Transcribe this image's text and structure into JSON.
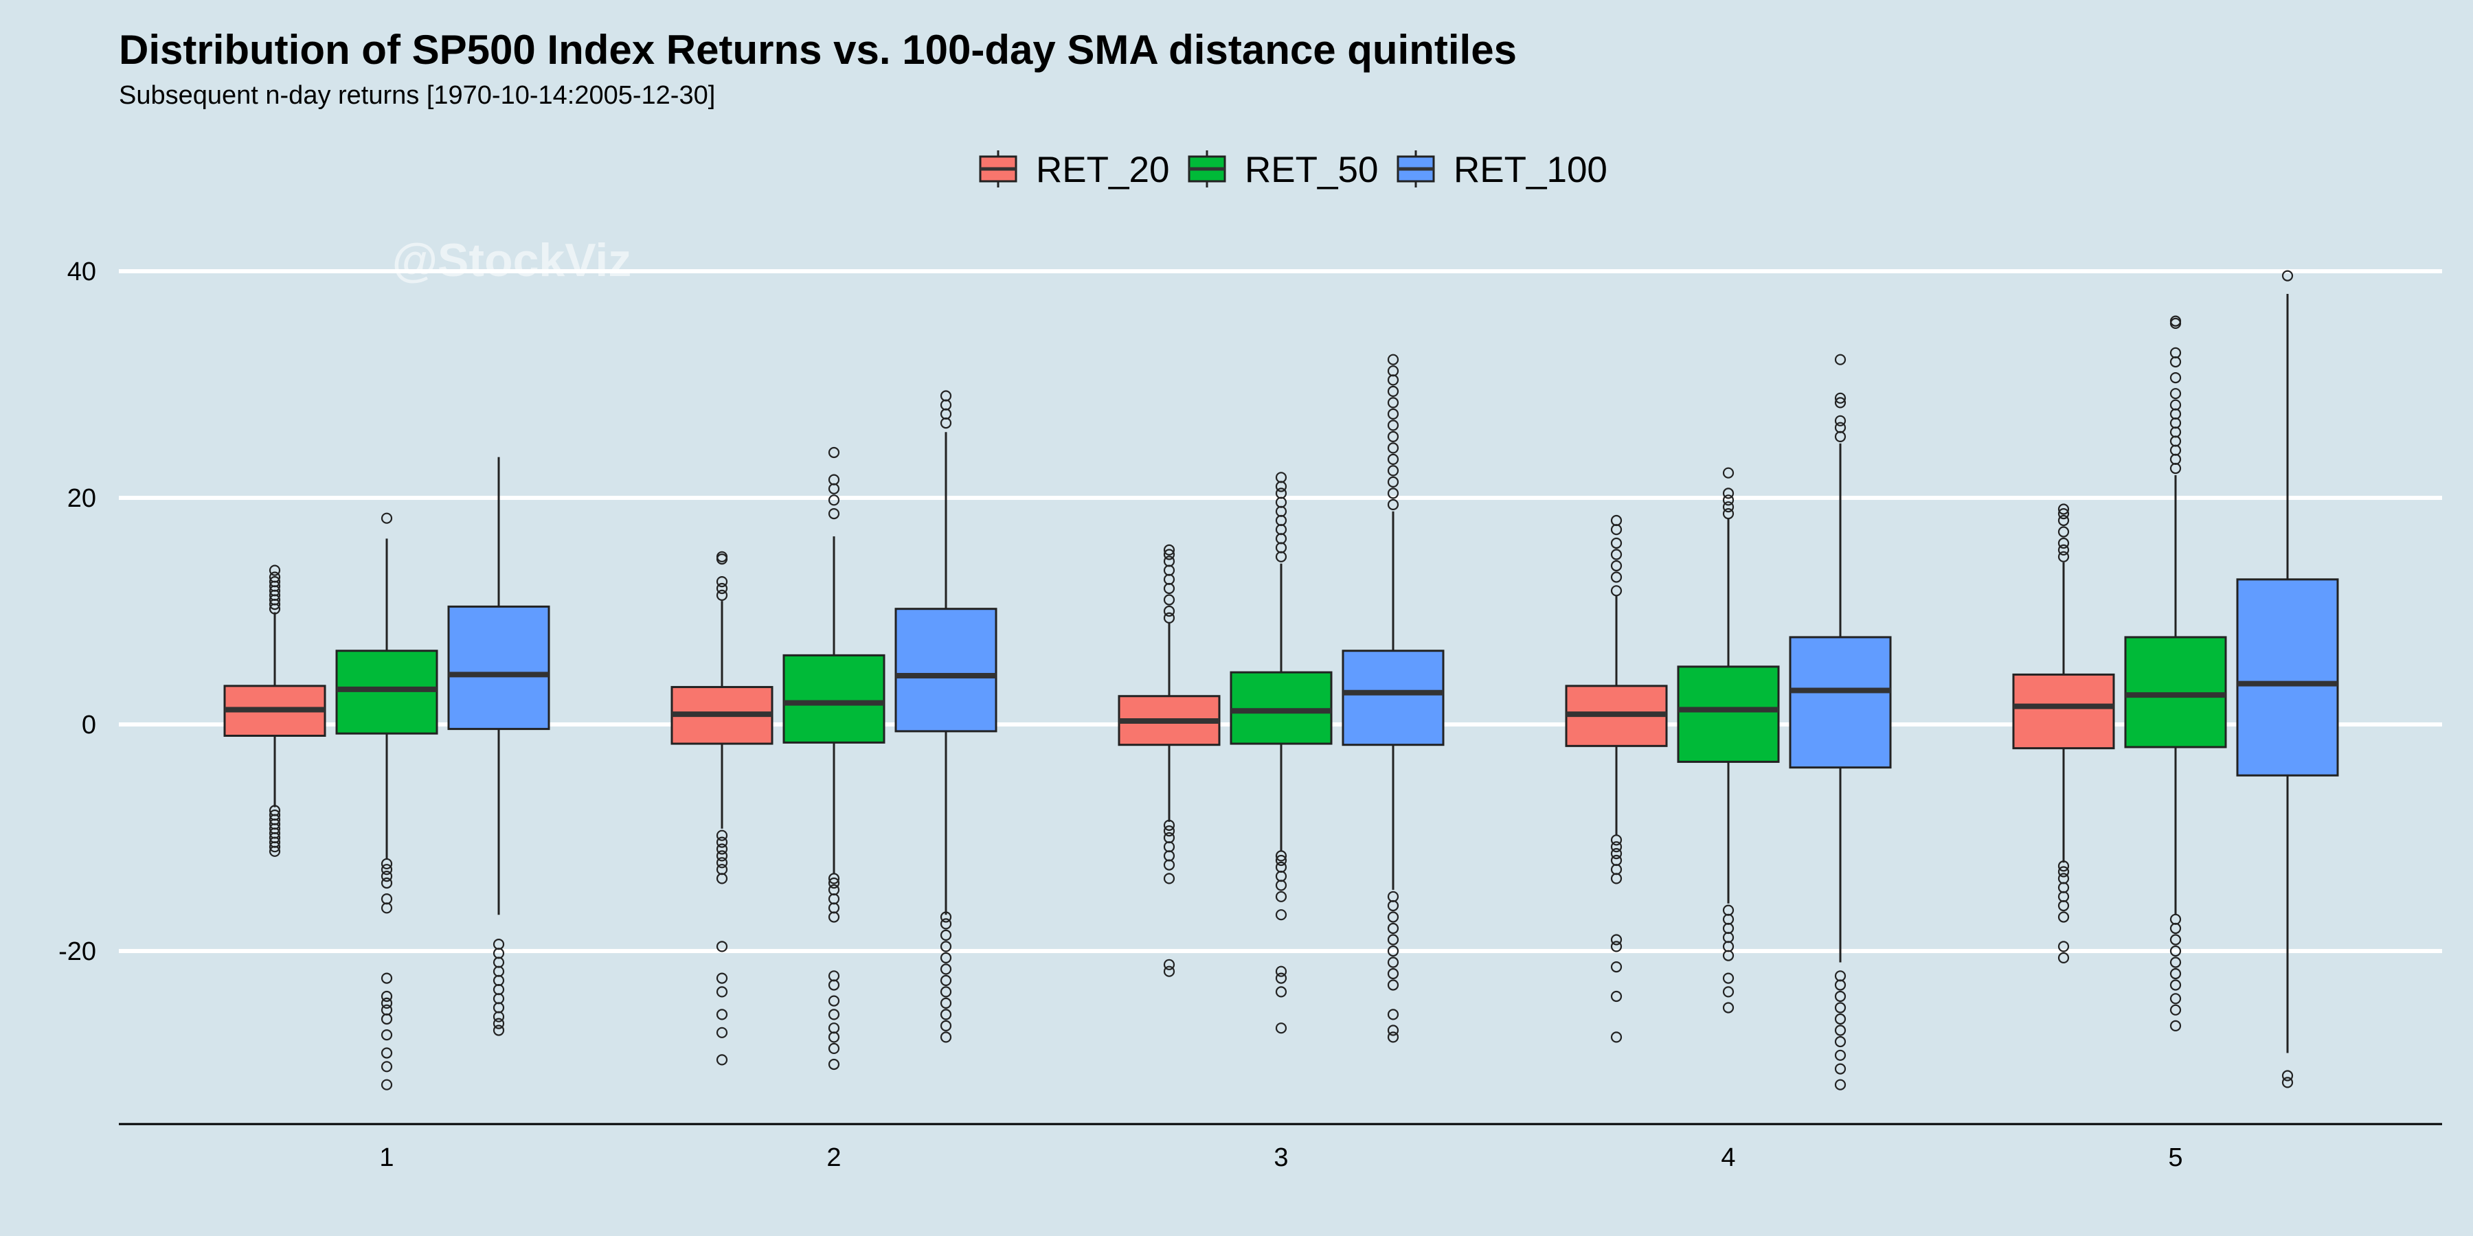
{
  "chart_data": {
    "type": "box",
    "title": "Distribution of SP500 Index Returns vs. 100-day SMA distance quintiles",
    "subtitle": "Subsequent n-day returns [1970-10-14:2005-12-30]",
    "watermark": "@StockViz",
    "xlabel": "",
    "ylabel": "",
    "categories": [
      "1",
      "2",
      "3",
      "4",
      "5"
    ],
    "ylim": [
      -35,
      40
    ],
    "yticks": [
      40,
      20,
      0,
      -20
    ],
    "ytick_labels": [
      "40",
      "20",
      "0",
      "-20"
    ],
    "grid": "horizontal major",
    "legend_position": "top",
    "series": [
      {
        "name": "RET_20",
        "color": "#f8766d",
        "boxes": [
          {
            "whisker_low": -7.3,
            "q1": -1.0,
            "median": 1.3,
            "q3": 3.4,
            "whisker_high": 9.9,
            "outliers": [
              -11.2,
              -10.8,
              -10.4,
              -10.0,
              -9.6,
              -9.2,
              -8.8,
              -8.4,
              -8.0,
              -7.6,
              10.2,
              10.6,
              11.0,
              11.4,
              11.8,
              12.2,
              12.6,
              13.0,
              13.6
            ]
          },
          {
            "whisker_low": -9.2,
            "q1": -1.7,
            "median": 0.9,
            "q3": 3.3,
            "whisker_high": 10.9,
            "outliers": [
              -29.6,
              -27.2,
              -25.6,
              -23.6,
              -22.4,
              -19.6,
              -13.6,
              -12.8,
              -12.2,
              -11.6,
              -11.0,
              -10.4,
              -9.8,
              11.4,
              12.0,
              12.6,
              14.6,
              14.8
            ]
          },
          {
            "whisker_low": -8.6,
            "q1": -1.8,
            "median": 0.3,
            "q3": 2.5,
            "whisker_high": 9.0,
            "outliers": [
              -21.8,
              -21.2,
              -13.6,
              -12.4,
              -11.6,
              -10.8,
              -10.0,
              -9.4,
              -8.9,
              9.4,
              10.0,
              11.0,
              12.0,
              12.8,
              13.6,
              14.4,
              15.0,
              15.4
            ]
          },
          {
            "whisker_low": -9.8,
            "q1": -1.9,
            "median": 0.9,
            "q3": 3.4,
            "whisker_high": 11.4,
            "outliers": [
              -27.6,
              -24.0,
              -21.4,
              -19.6,
              -19.0,
              -13.6,
              -12.8,
              -12.0,
              -11.4,
              -10.8,
              -10.2,
              11.8,
              13.0,
              14.0,
              15.0,
              16.0,
              17.2,
              18.0
            ]
          },
          {
            "whisker_low": -12.2,
            "q1": -2.1,
            "median": 1.6,
            "q3": 4.4,
            "whisker_high": 14.3,
            "outliers": [
              -20.6,
              -19.6,
              -17.0,
              -16.0,
              -15.2,
              -14.4,
              -13.6,
              -13.0,
              -12.5,
              14.8,
              15.4,
              16.0,
              17.0,
              18.0,
              18.6,
              19.0
            ]
          }
        ]
      },
      {
        "name": "RET_50",
        "color": "#00ba38",
        "boxes": [
          {
            "whisker_low": -11.9,
            "q1": -0.8,
            "median": 3.1,
            "q3": 6.5,
            "whisker_high": 16.4,
            "outliers": [
              -31.8,
              -30.2,
              -29.0,
              -27.4,
              -26.0,
              -25.2,
              -24.6,
              -24.0,
              -22.4,
              -16.2,
              -15.4,
              -14.0,
              -13.4,
              -12.8,
              -12.3,
              18.2
            ]
          },
          {
            "whisker_low": -13.2,
            "q1": -1.6,
            "median": 1.9,
            "q3": 6.1,
            "whisker_high": 16.6,
            "outliers": [
              -30.0,
              -28.6,
              -27.6,
              -26.8,
              -25.6,
              -24.4,
              -23.0,
              -22.2,
              -17.0,
              -16.2,
              -15.4,
              -14.6,
              -14.0,
              -13.6,
              18.6,
              19.8,
              20.8,
              21.6,
              24.0
            ]
          },
          {
            "whisker_low": -11.2,
            "q1": -1.7,
            "median": 1.2,
            "q3": 4.6,
            "whisker_high": 14.2,
            "outliers": [
              -26.8,
              -23.6,
              -22.4,
              -21.8,
              -16.8,
              -15.2,
              -14.2,
              -13.4,
              -12.6,
              -12.0,
              -11.6,
              14.8,
              15.6,
              16.4,
              17.2,
              18.0,
              18.8,
              19.6,
              20.4,
              21.0,
              21.8
            ]
          },
          {
            "whisker_low": -15.8,
            "q1": -3.3,
            "median": 1.3,
            "q3": 5.1,
            "whisker_high": 18.2,
            "outliers": [
              -25.0,
              -23.6,
              -22.4,
              -20.4,
              -19.6,
              -18.8,
              -18.0,
              -17.2,
              -16.4,
              18.6,
              19.2,
              19.8,
              20.4,
              22.2
            ]
          },
          {
            "whisker_low": -16.8,
            "q1": -2.0,
            "median": 2.6,
            "q3": 7.7,
            "whisker_high": 22.0,
            "outliers": [
              -26.6,
              -25.2,
              -24.2,
              -23.0,
              -22.0,
              -21.0,
              -20.0,
              -19.0,
              -18.0,
              -17.2,
              22.6,
              23.4,
              24.2,
              25.0,
              25.8,
              26.6,
              27.4,
              28.2,
              29.2,
              30.6,
              32.0,
              32.8,
              35.4,
              35.6
            ]
          }
        ]
      },
      {
        "name": "RET_100",
        "color": "#619cff",
        "boxes": [
          {
            "whisker_low": -16.8,
            "q1": -0.4,
            "median": 4.4,
            "q3": 10.4,
            "whisker_high": 23.6,
            "outliers": [
              -27.0,
              -26.4,
              -25.8,
              -25.0,
              -24.2,
              -23.4,
              -22.6,
              -21.8,
              -21.0,
              -20.2,
              -19.4
            ]
          },
          {
            "whisker_low": -16.8,
            "q1": -0.6,
            "median": 4.3,
            "q3": 10.2,
            "whisker_high": 25.8,
            "outliers": [
              -27.6,
              -26.6,
              -25.6,
              -24.6,
              -23.6,
              -22.6,
              -21.6,
              -20.6,
              -19.6,
              -18.6,
              -17.6,
              -17.0,
              26.6,
              27.4,
              28.2,
              29.0
            ]
          },
          {
            "whisker_low": -14.6,
            "q1": -1.8,
            "median": 2.8,
            "q3": 6.5,
            "whisker_high": 18.8,
            "outliers": [
              -27.6,
              -27.0,
              -25.6,
              -23.0,
              -22.0,
              -21.0,
              -20.0,
              -19.0,
              -18.0,
              -17.0,
              -16.0,
              -15.2,
              19.4,
              20.4,
              21.4,
              22.4,
              23.4,
              24.4,
              25.4,
              26.4,
              27.4,
              28.4,
              29.4,
              30.4,
              31.2,
              32.2
            ]
          },
          {
            "whisker_low": -21.0,
            "q1": -3.8,
            "median": 3.0,
            "q3": 7.7,
            "whisker_high": 24.8,
            "outliers": [
              -31.8,
              -30.4,
              -29.2,
              -28.0,
              -27.0,
              -26.0,
              -25.0,
              -24.0,
              -23.0,
              -22.2,
              25.4,
              26.2,
              26.8,
              28.4,
              28.8,
              32.2
            ]
          },
          {
            "whisker_low": -29.0,
            "q1": -4.5,
            "median": 3.6,
            "q3": 12.8,
            "whisker_high": 38.0,
            "outliers": [
              -31.6,
              -31.0,
              39.6
            ]
          }
        ]
      }
    ]
  }
}
